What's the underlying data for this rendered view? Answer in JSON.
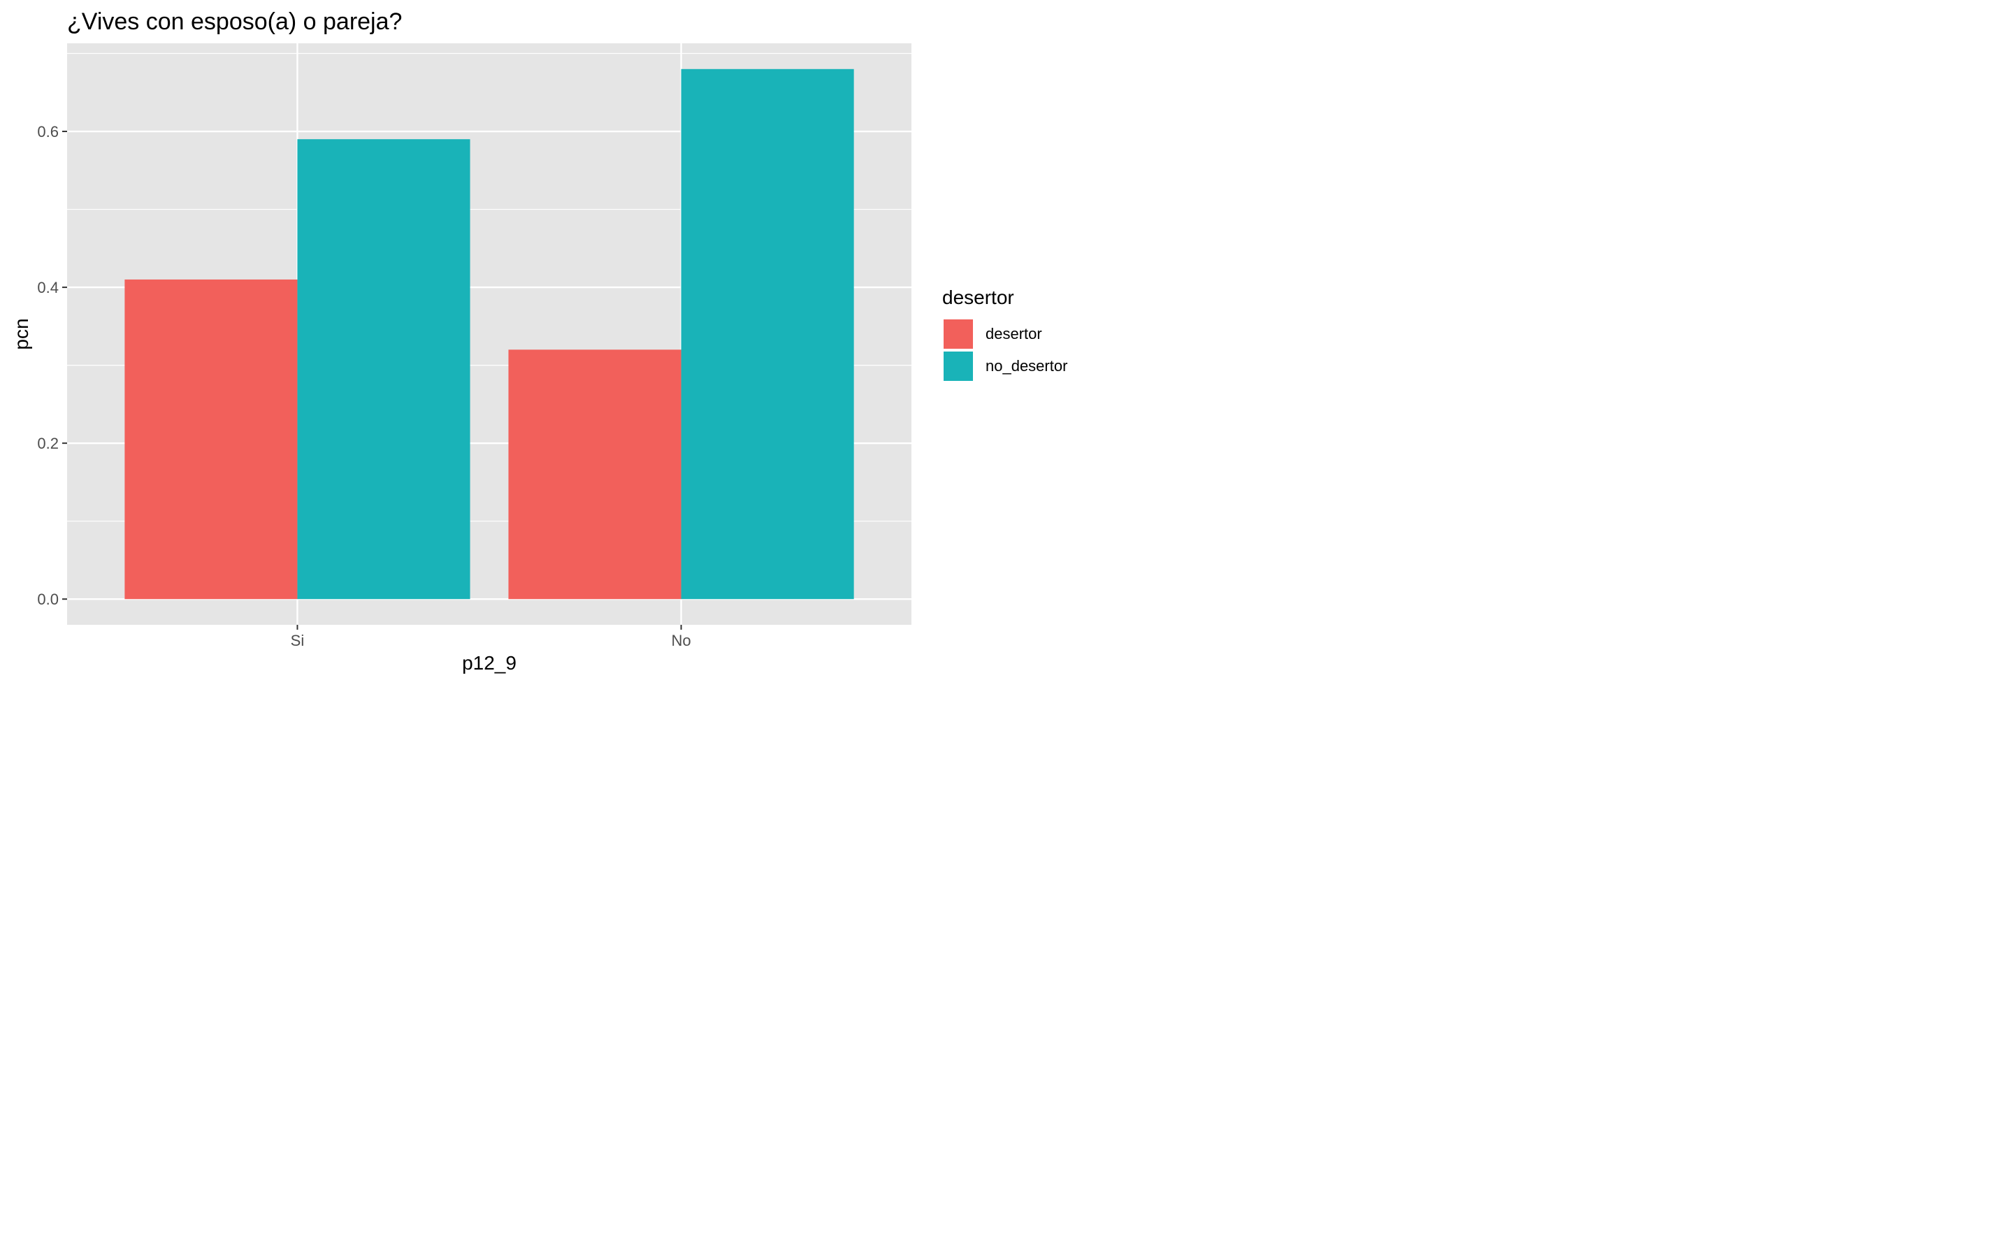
{
  "chart_data": {
    "type": "bar",
    "title": "¿Vives con esposo(a) o pareja?",
    "xlabel": "p12_9",
    "ylabel": "pcn",
    "categories": [
      "Si",
      "No"
    ],
    "series": [
      {
        "name": "desertor",
        "values": [
          0.41,
          0.32
        ],
        "color": "#F2605B"
      },
      {
        "name": "no_desertor",
        "values": [
          0.59,
          0.68
        ],
        "color": "#19B3B8"
      }
    ],
    "yticks": [
      "0.0",
      "0.2",
      "0.4",
      "0.6"
    ],
    "ylim": [
      -0.033,
      0.713
    ],
    "grid": true,
    "legend": {
      "title": "desertor",
      "position": "right"
    },
    "panel_color": "#E5E5E5"
  }
}
